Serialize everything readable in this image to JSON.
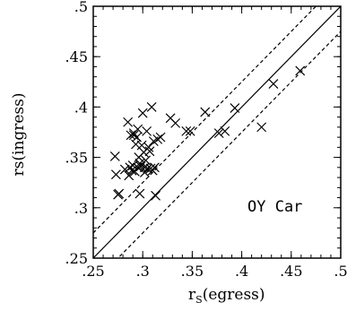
{
  "chart_data": {
    "type": "scatter",
    "title": "",
    "xlabel_main": "r",
    "xlabel_sub": "S",
    "xlabel_rest": "(egress)",
    "ylabel": "rs(ingress)",
    "xlim": [
      0.25,
      0.5
    ],
    "ylim": [
      0.25,
      0.5
    ],
    "xticks": [
      ".25",
      ".3",
      ".35",
      ".4",
      ".45",
      ".5"
    ],
    "yticks": [
      ".25",
      ".3",
      ".35",
      ".4",
      ".45",
      ".5"
    ],
    "xtick_values": [
      0.25,
      0.3,
      0.35,
      0.4,
      0.45,
      0.5
    ],
    "ytick_values": [
      0.25,
      0.3,
      0.35,
      0.4,
      0.45,
      0.5
    ],
    "annotation": "OY Car",
    "marker": "x",
    "lines": [
      {
        "style": "solid",
        "x": [
          0.25,
          0.5
        ],
        "y": [
          0.25,
          0.5
        ]
      },
      {
        "style": "dashed",
        "x": [
          0.25,
          0.5
        ],
        "y": [
          0.275,
          0.525
        ]
      },
      {
        "style": "dashed",
        "x": [
          0.25,
          0.5
        ],
        "y": [
          0.225,
          0.475
        ]
      }
    ],
    "points": {
      "x": [
        0.272,
        0.273,
        0.276,
        0.275,
        0.282,
        0.285,
        0.286,
        0.287,
        0.288,
        0.289,
        0.29,
        0.291,
        0.291,
        0.292,
        0.293,
        0.294,
        0.295,
        0.295,
        0.296,
        0.297,
        0.297,
        0.298,
        0.299,
        0.3,
        0.301,
        0.302,
        0.302,
        0.303,
        0.304,
        0.305,
        0.306,
        0.307,
        0.308,
        0.309,
        0.31,
        0.311,
        0.312,
        0.313,
        0.315,
        0.318,
        0.328,
        0.333,
        0.344,
        0.348,
        0.363,
        0.377,
        0.383,
        0.393,
        0.42,
        0.432,
        0.459
      ],
      "y": [
        0.351,
        0.333,
        0.314,
        0.313,
        0.338,
        0.385,
        0.332,
        0.34,
        0.372,
        0.337,
        0.342,
        0.374,
        0.372,
        0.336,
        0.363,
        0.37,
        0.34,
        0.378,
        0.35,
        0.344,
        0.314,
        0.341,
        0.362,
        0.394,
        0.355,
        0.34,
        0.335,
        0.347,
        0.376,
        0.339,
        0.36,
        0.356,
        0.339,
        0.4,
        0.337,
        0.366,
        0.34,
        0.312,
        0.368,
        0.37,
        0.389,
        0.384,
        0.376,
        0.376,
        0.395,
        0.374,
        0.376,
        0.399,
        0.38,
        0.423,
        0.436
      ]
    }
  }
}
